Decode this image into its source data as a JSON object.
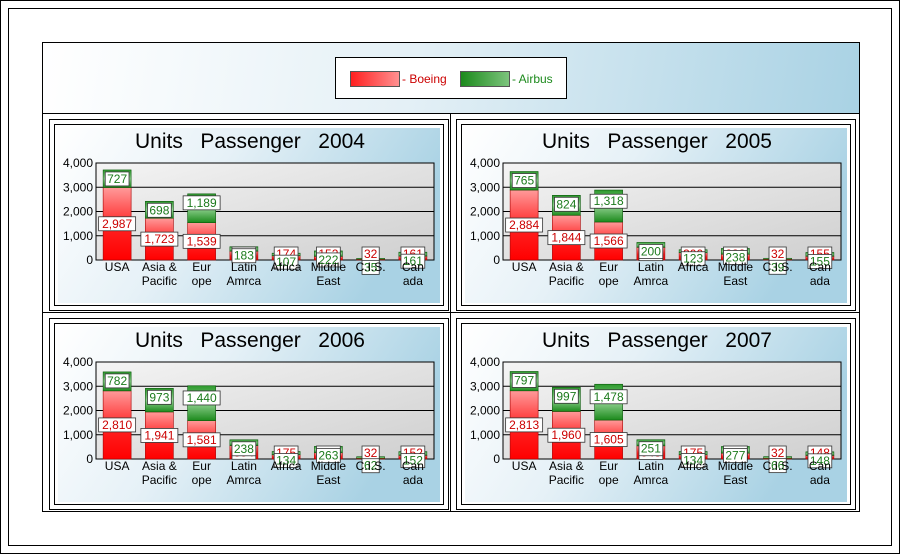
{
  "legend": {
    "boeing_label": "- Boeing",
    "airbus_label": "- Airbus"
  },
  "colors": {
    "boeing": "#ff2020",
    "airbus": "#1c8a1c",
    "header_gradient_end": "#a9d2e4"
  },
  "chart_data": [
    {
      "type": "bar",
      "title": "Units   Passenger   2004",
      "categories": [
        [
          "USA"
        ],
        [
          "Asia &",
          "Pacific"
        ],
        [
          "Eur",
          "ope"
        ],
        [
          "Latin",
          "Amrca"
        ],
        [
          "Africa"
        ],
        [
          "Middle",
          "East"
        ],
        [
          "C.I.S."
        ],
        [
          "Can",
          "ada"
        ]
      ],
      "series": [
        {
          "name": "Boeing",
          "values": [
            2987,
            1723,
            1539,
            364,
            174,
            152,
            32,
            161
          ]
        },
        {
          "name": "Airbus",
          "values": [
            727,
            698,
            1189,
            183,
            107,
            222,
            35,
            161
          ]
        }
      ],
      "stacked": true,
      "ylim": [
        0,
        4000
      ],
      "yticks": [
        "0",
        "1,000",
        "2,000",
        "3,000",
        "4,000"
      ]
    },
    {
      "type": "bar",
      "title": "Units   Passenger   2005",
      "categories": [
        [
          "USA"
        ],
        [
          "Asia &",
          "Pacific"
        ],
        [
          "Eur",
          "ope"
        ],
        [
          "Latin",
          "Amrca"
        ],
        [
          "Africa"
        ],
        [
          "Middle",
          "East"
        ],
        [
          "C.I.S."
        ],
        [
          "Can",
          "ada"
        ]
      ],
      "series": [
        {
          "name": "Boeing",
          "values": [
            2884,
            1844,
            1566,
            524,
            300,
            238,
            32,
            155
          ]
        },
        {
          "name": "Airbus",
          "values": [
            765,
            824,
            1318,
            200,
            123,
            238,
            39,
            155
          ]
        }
      ],
      "stacked": true,
      "ylim": [
        0,
        4000
      ],
      "yticks": [
        "0",
        "1,000",
        "2,000",
        "3,000",
        "4,000"
      ]
    },
    {
      "type": "bar",
      "title": "Units   Passenger   2006",
      "categories": [
        [
          "USA"
        ],
        [
          "Asia &",
          "Pacific"
        ],
        [
          "Eur",
          "ope"
        ],
        [
          "Latin",
          "Amrca"
        ],
        [
          "Africa"
        ],
        [
          "Middle",
          "East"
        ],
        [
          "C.I.S."
        ],
        [
          "Can",
          "ada"
        ]
      ],
      "series": [
        {
          "name": "Boeing",
          "values": [
            2810,
            1941,
            1581,
            554,
            175,
            257,
            32,
            152
          ]
        },
        {
          "name": "Airbus",
          "values": [
            782,
            973,
            1440,
            238,
            134,
            263,
            62,
            152
          ]
        }
      ],
      "stacked": true,
      "ylim": [
        0,
        4000
      ],
      "yticks": [
        "0",
        "1,000",
        "2,000",
        "3,000",
        "4,000"
      ]
    },
    {
      "type": "bar",
      "title": "Units   Passenger   2007",
      "categories": [
        [
          "USA"
        ],
        [
          "Asia &",
          "Pacific"
        ],
        [
          "Eur",
          "ope"
        ],
        [
          "Latin",
          "Amrca"
        ],
        [
          "Africa"
        ],
        [
          "Middle",
          "East"
        ],
        [
          "C.I.S."
        ],
        [
          "Can",
          "ada"
        ]
      ],
      "series": [
        {
          "name": "Boeing",
          "values": [
            2813,
            1960,
            1605,
            543,
            175,
            240,
            32,
            148
          ]
        },
        {
          "name": "Airbus",
          "values": [
            797,
            997,
            1478,
            251,
            134,
            277,
            66,
            148
          ]
        }
      ],
      "stacked": true,
      "ylim": [
        0,
        4000
      ],
      "yticks": [
        "0",
        "1,000",
        "2,000",
        "3,000",
        "4,000"
      ]
    }
  ]
}
